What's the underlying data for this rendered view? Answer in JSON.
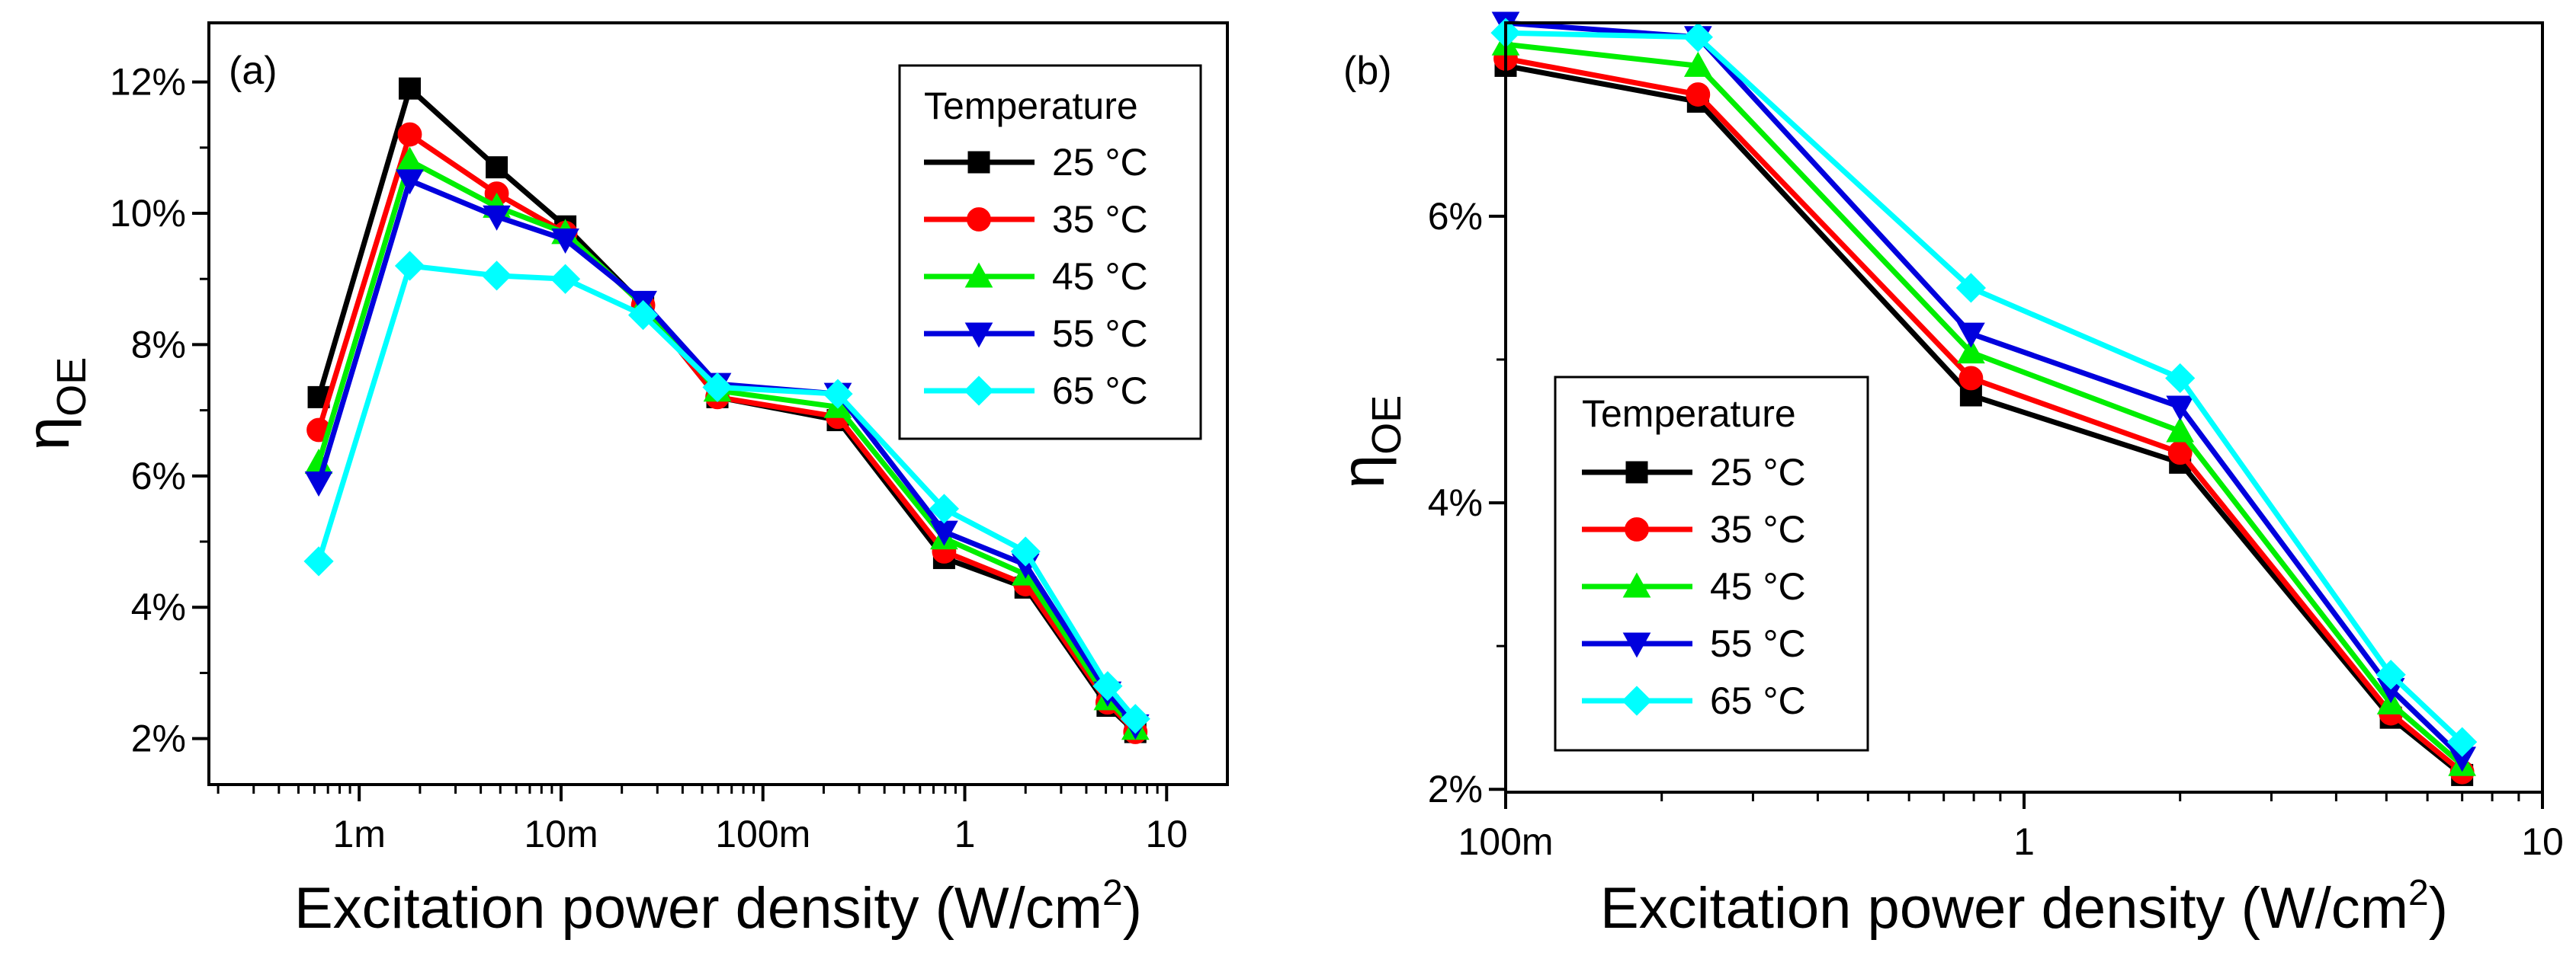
{
  "chart_data": [
    {
      "type": "line",
      "panel_label": "(a)",
      "xscale": "log",
      "xlabel": "Excitation power density (W/cm",
      "xlabel_sup": "2",
      "xlabel_close": ")",
      "ylabel": "η",
      "ylabel_sub": "OE",
      "xlim": [
        0.00018,
        20
      ],
      "ylim": [
        1.3,
        12.9
      ],
      "x_ticks": [
        {
          "value": 0.001,
          "label": "1m"
        },
        {
          "value": 0.01,
          "label": "10m"
        },
        {
          "value": 0.1,
          "label": "100m"
        },
        {
          "value": 1,
          "label": "1"
        },
        {
          "value": 10,
          "label": "10"
        }
      ],
      "y_ticks": [
        {
          "value": 2,
          "label": "2%"
        },
        {
          "value": 4,
          "label": "4%"
        },
        {
          "value": 6,
          "label": "6%"
        },
        {
          "value": 8,
          "label": "8%"
        },
        {
          "value": 10,
          "label": "10%"
        },
        {
          "value": 12,
          "label": "12%"
        }
      ],
      "legend_title": "Temperature",
      "legend_position": "top-right",
      "x": [
        0.00063,
        0.00178,
        0.0048,
        0.0105,
        0.0255,
        0.0595,
        0.235,
        0.79,
        2.0,
        5.1,
        7.0
      ],
      "series": [
        {
          "name": "25 °C",
          "color": "#000000",
          "marker": "square",
          "values": [
            7.2,
            11.9,
            10.7,
            9.8,
            8.6,
            7.2,
            6.85,
            4.75,
            4.3,
            2.5,
            2.1
          ]
        },
        {
          "name": "35 °C",
          "color": "#ff0000",
          "marker": "circle",
          "values": [
            6.7,
            11.2,
            10.3,
            9.7,
            8.6,
            7.2,
            6.9,
            4.85,
            4.35,
            2.55,
            2.1
          ]
        },
        {
          "name": "45 °C",
          "color": "#00ee00",
          "marker": "triangle-up",
          "values": [
            6.2,
            10.8,
            10.1,
            9.7,
            8.6,
            7.3,
            7.05,
            5.05,
            4.5,
            2.6,
            2.15
          ]
        },
        {
          "name": "55 °C",
          "color": "#0000dd",
          "marker": "triangle-down",
          "values": [
            5.9,
            10.5,
            9.95,
            9.6,
            8.65,
            7.4,
            7.25,
            5.15,
            4.65,
            2.7,
            2.2
          ]
        },
        {
          "name": "65 °C",
          "color": "#00ffff",
          "marker": "diamond",
          "values": [
            4.7,
            9.2,
            9.05,
            9.0,
            8.45,
            7.35,
            7.25,
            5.5,
            4.85,
            2.8,
            2.3
          ]
        }
      ]
    },
    {
      "type": "line",
      "panel_label": "(b)",
      "xscale": "log",
      "xlabel": "Excitation power density (W/cm",
      "xlabel_sup": "2",
      "xlabel_close": ")",
      "ylabel": "η",
      "ylabel_sub": "OE",
      "xlim": [
        0.1,
        10
      ],
      "ylim": [
        1.98,
        7.35
      ],
      "x_ticks": [
        {
          "value": 0.1,
          "label": "100m"
        },
        {
          "value": 1,
          "label": "1"
        },
        {
          "value": 10,
          "label": "10"
        }
      ],
      "y_ticks": [
        {
          "value": 2,
          "label": "2%"
        },
        {
          "value": 4,
          "label": "4%"
        },
        {
          "value": 6,
          "label": "6%"
        }
      ],
      "legend_title": "Temperature",
      "legend_position": "bottom-left",
      "x": [
        0.1,
        0.235,
        0.79,
        2.0,
        5.1,
        7.0
      ],
      "series": [
        {
          "name": "25 °C",
          "color": "#000000",
          "marker": "square",
          "values": [
            7.05,
            6.8,
            4.75,
            4.28,
            2.5,
            2.1
          ]
        },
        {
          "name": "35 °C",
          "color": "#ff0000",
          "marker": "circle",
          "values": [
            7.1,
            6.85,
            4.87,
            4.35,
            2.53,
            2.12
          ]
        },
        {
          "name": "45 °C",
          "color": "#00ee00",
          "marker": "triangle-up",
          "values": [
            7.2,
            7.05,
            5.05,
            4.5,
            2.6,
            2.17
          ]
        },
        {
          "name": "55 °C",
          "color": "#0000dd",
          "marker": "triangle-down",
          "values": [
            7.35,
            7.25,
            5.18,
            4.67,
            2.7,
            2.22
          ]
        },
        {
          "name": "65 °C",
          "color": "#00ffff",
          "marker": "diamond",
          "values": [
            7.28,
            7.25,
            5.5,
            4.87,
            2.8,
            2.33
          ]
        }
      ]
    }
  ]
}
